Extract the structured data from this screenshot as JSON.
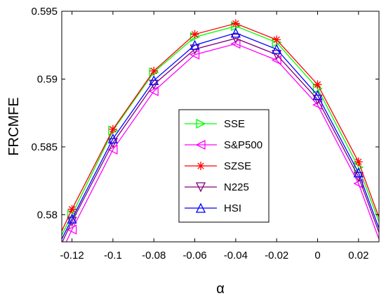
{
  "chart_data": {
    "type": "line",
    "title": "",
    "xlabel": "α",
    "ylabel": "FRCMFE",
    "xlim": [
      -0.125,
      0.03
    ],
    "ylim": [
      0.578,
      0.595
    ],
    "x_ticks": [
      -0.12,
      -0.1,
      -0.08,
      -0.06,
      -0.04,
      -0.02,
      0,
      0.02
    ],
    "x_tick_labels": [
      "-0.12",
      "-0.1",
      "-0.08",
      "-0.06",
      "-0.04",
      "-0.02",
      "0",
      "0.02"
    ],
    "y_ticks": [
      0.58,
      0.585,
      0.59,
      0.595
    ],
    "y_tick_labels": [
      "0.58",
      "0.585",
      "0.59",
      "0.595"
    ],
    "grid": false,
    "legend_position": "center",
    "series": [
      {
        "name": "SSE",
        "color": "#00ff00",
        "marker": "triangle-right",
        "x": [
          -0.125,
          -0.12,
          -0.1,
          -0.08,
          -0.06,
          -0.04,
          -0.02,
          0,
          0.02,
          0.03
        ],
        "values": [
          0.5785,
          0.58,
          0.5862,
          0.5905,
          0.5931,
          0.5939,
          0.5927,
          0.5893,
          0.5835,
          0.5795
        ]
      },
      {
        "name": "S&P500",
        "color": "#ff00ff",
        "marker": "triangle-left",
        "x": [
          -0.125,
          -0.12,
          -0.1,
          -0.08,
          -0.06,
          -0.04,
          -0.02,
          0,
          0.02,
          0.03
        ],
        "values": [
          0.5773,
          0.5789,
          0.5848,
          0.5891,
          0.5918,
          0.5926,
          0.5914,
          0.5881,
          0.5823,
          0.5782
        ]
      },
      {
        "name": "SZSE",
        "color": "#ff0000",
        "marker": "asterisk",
        "x": [
          -0.125,
          -0.12,
          -0.1,
          -0.08,
          -0.06,
          -0.04,
          -0.02,
          0,
          0.02,
          0.03
        ],
        "values": [
          0.5788,
          0.5804,
          0.5863,
          0.5906,
          0.5933,
          0.5941,
          0.5929,
          0.5896,
          0.5839,
          0.5798
        ]
      },
      {
        "name": "N225",
        "color": "#800080",
        "marker": "triangle-down",
        "x": [
          -0.125,
          -0.12,
          -0.1,
          -0.08,
          -0.06,
          -0.04,
          -0.02,
          0,
          0.02,
          0.03
        ],
        "values": [
          0.5779,
          0.5795,
          0.5853,
          0.5896,
          0.5922,
          0.593,
          0.5918,
          0.5885,
          0.5828,
          0.5787
        ]
      },
      {
        "name": "HSI",
        "color": "#0000ff",
        "marker": "triangle-up",
        "x": [
          -0.125,
          -0.12,
          -0.1,
          -0.08,
          -0.06,
          -0.04,
          -0.02,
          0,
          0.02,
          0.03
        ],
        "values": [
          0.5782,
          0.5797,
          0.5856,
          0.5899,
          0.5925,
          0.5934,
          0.5922,
          0.5888,
          0.5831,
          0.579
        ]
      }
    ]
  }
}
